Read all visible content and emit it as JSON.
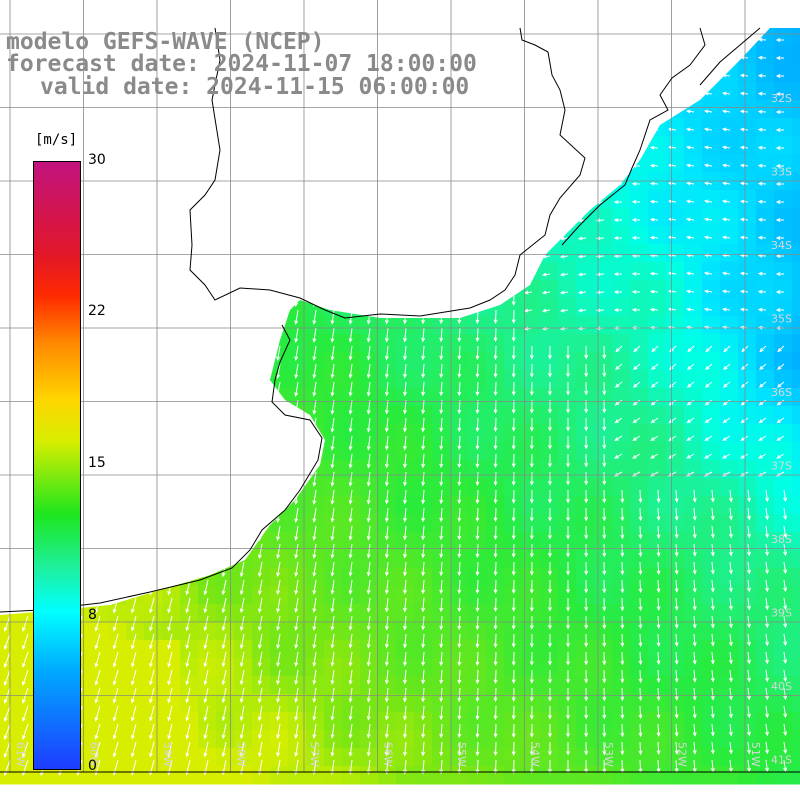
{
  "title": {
    "line1": "modelo GEFS-WAVE (NCEP)",
    "line2": "forecast date: 2024-11-07 18:00:00",
    "line3": "valid date: 2024-11-15 06:00:00"
  },
  "colorbar": {
    "unit": "[m/s]",
    "ticks": [
      "30",
      "22",
      "15",
      "8",
      "0"
    ],
    "min": 0,
    "max": 30,
    "colors": [
      "#c2147e",
      "#e0162a",
      "#ff8a00",
      "#ffd400",
      "#1ee61e",
      "#00ffff",
      "#00a8ff",
      "#1e3cff"
    ]
  },
  "map": {
    "latitude_labels": [
      "32S",
      "33S",
      "34S",
      "35S",
      "36S",
      "37S",
      "38S",
      "39S",
      "40S",
      "41S"
    ],
    "longitude_labels": [
      "61W",
      "60W",
      "59W",
      "58W",
      "57W",
      "56W",
      "55W",
      "54W",
      "53W",
      "52W",
      "51W"
    ],
    "land_color": "#ffffff",
    "grid_color": "#888888",
    "arrow_color": "#ffffff",
    "field": "wind speed and direction over ocean"
  }
}
